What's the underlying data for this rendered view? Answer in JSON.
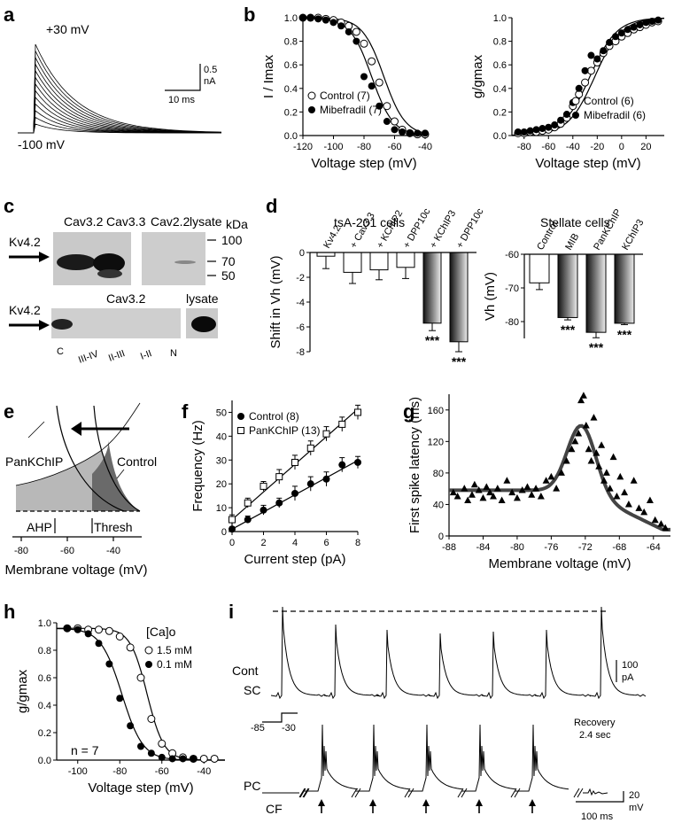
{
  "panels": {
    "a": {
      "label": "a",
      "top_voltage": "+30 mV",
      "bottom_voltage": "-100 mV",
      "scale_current": "0.5 nA",
      "scale_time": "10 ms",
      "scale_current_lines": [
        "0.5",
        "nA"
      ]
    },
    "b1": {
      "label": "b",
      "chart_data": {
        "type": "scatter",
        "xlabel": "Voltage step (mV)",
        "ylabel": "I / Imax",
        "xlim": [
          -120,
          -40
        ],
        "ylim": [
          0.0,
          1.0
        ],
        "xticks": [
          -120,
          -100,
          -80,
          -60,
          -40
        ],
        "yticks": [
          "0.0",
          "0.2",
          "0.4",
          "0.6",
          "0.8",
          "1.0"
        ],
        "series": [
          {
            "name": "Control (7)",
            "marker": "open-circle",
            "x": [
              -120,
              -115,
              -110,
              -105,
              -100,
              -95,
              -90,
              -85,
              -80,
              -75,
              -70,
              -65,
              -60,
              -55,
              -50,
              -45,
              -40
            ],
            "y": [
              1.0,
              1.0,
              1.0,
              0.99,
              0.98,
              0.96,
              0.93,
              0.88,
              0.78,
              0.63,
              0.45,
              0.25,
              0.12,
              0.05,
              0.02,
              0.01,
              0.01
            ]
          },
          {
            "name": "Mibefradil (7)",
            "marker": "filled-circle",
            "x": [
              -120,
              -115,
              -110,
              -105,
              -100,
              -95,
              -90,
              -85,
              -80,
              -75,
              -70,
              -65,
              -60,
              -55,
              -50,
              -45,
              -40
            ],
            "y": [
              1.0,
              1.0,
              0.99,
              0.98,
              0.96,
              0.93,
              0.88,
              0.8,
              0.5,
              0.42,
              0.25,
              0.12,
              0.05,
              0.03,
              0.02,
              0.02,
              0.02
            ]
          }
        ]
      }
    },
    "b2": {
      "chart_data": {
        "type": "scatter",
        "xlabel": "Voltage step (mV)",
        "ylabel": "g/gmax",
        "xlim": [
          -90,
          35
        ],
        "ylim": [
          0.0,
          1.0
        ],
        "xticks": [
          -80,
          -60,
          -40,
          -20,
          0,
          20
        ],
        "yticks": [
          "0.0",
          "0.2",
          "0.4",
          "0.6",
          "0.8",
          "1.0"
        ],
        "series": [
          {
            "name": "Control (6)",
            "marker": "open-circle",
            "x": [
              -85,
              -80,
              -75,
              -70,
              -65,
              -60,
              -55,
              -50,
              -45,
              -40,
              -35,
              -30,
              -25,
              -20,
              -15,
              -10,
              -5,
              0,
              5,
              10,
              15,
              20,
              25,
              30
            ],
            "y": [
              0.02,
              0.02,
              0.03,
              0.03,
              0.04,
              0.05,
              0.07,
              0.1,
              0.15,
              0.25,
              0.35,
              0.45,
              0.55,
              0.62,
              0.7,
              0.76,
              0.8,
              0.84,
              0.87,
              0.9,
              0.92,
              0.94,
              0.96,
              0.97
            ]
          },
          {
            "name": "Mibefradil (6)",
            "marker": "filled-circle",
            "x": [
              -85,
              -80,
              -75,
              -70,
              -65,
              -60,
              -55,
              -50,
              -45,
              -40,
              -35,
              -30,
              -25,
              -20,
              -15,
              -10,
              -5,
              0,
              5,
              10,
              15,
              20,
              25,
              30
            ],
            "y": [
              0.03,
              0.03,
              0.04,
              0.05,
              0.06,
              0.07,
              0.09,
              0.13,
              0.18,
              0.28,
              0.4,
              0.55,
              0.68,
              0.65,
              0.72,
              0.79,
              0.84,
              0.87,
              0.9,
              0.92,
              0.94,
              0.96,
              0.97,
              0.98
            ]
          }
        ]
      }
    },
    "c": {
      "label": "c",
      "top_lanes": [
        "Cav3.2",
        "Cav3.3",
        "Cav2.2",
        "lysate"
      ],
      "kda_title": "kDa",
      "kda_marks": [
        "100",
        "70",
        "50"
      ],
      "arrow_label": "Kv4.2",
      "bottom_title": "Cav3.2",
      "bottom_lysate": "lysate",
      "bottom_lanes": [
        "C",
        "III-IV",
        "II-III",
        "I-II",
        "N"
      ]
    },
    "d1": {
      "label": "d",
      "title": "tsA-201 cells",
      "chart_data": {
        "type": "bar",
        "categories": [
          "Kv4.2",
          "+ Cav3.3",
          "+ KChIP2",
          "+ DPP10c",
          "+ KChIP3",
          "+ DPP10c"
        ],
        "values": [
          -0.3,
          -1.6,
          -1.4,
          -1.2,
          -5.7,
          -7.2
        ],
        "errors": [
          1.0,
          0.9,
          0.8,
          0.9,
          0.6,
          0.8
        ],
        "significance": [
          "",
          "",
          "",
          "",
          "***",
          "***"
        ],
        "ylabel": "Shift in Vh (mV)",
        "ylim": [
          -8,
          0
        ],
        "yticks": [
          "0",
          "-2",
          "-4",
          "-6",
          "-8"
        ]
      }
    },
    "d2": {
      "title": "Stellate cells",
      "chart_data": {
        "type": "bar",
        "categories": [
          "Control",
          "MIB",
          "PanKChIP",
          "KChIP3"
        ],
        "values": [
          -68.5,
          -78.8,
          -83.2,
          -80.5
        ],
        "errors": [
          2.0,
          0.7,
          1.6,
          0.4
        ],
        "significance": [
          "",
          "***",
          "***",
          "***"
        ],
        "ylabel": "Vh (mV)",
        "ylim": [
          -85,
          -60
        ],
        "yticks": [
          "-60",
          "-70",
          "-80"
        ]
      }
    },
    "e": {
      "label": "e",
      "curve_label_left": "PanKChIP",
      "curve_label_right": "Control",
      "marker_ahp": "AHP",
      "marker_thresh": "Thresh",
      "xlabel": "Membrane voltage (mV)",
      "xticks": [
        "-80",
        "-60",
        "-40"
      ]
    },
    "f": {
      "label": "f",
      "chart_data": {
        "type": "scatter",
        "xlabel": "Current step (pA)",
        "ylabel": "Frequency (Hz)",
        "xlim": [
          0,
          8
        ],
        "ylim": [
          0,
          55
        ],
        "xticks": [
          "0",
          "2",
          "4",
          "6",
          "8"
        ],
        "yticks": [
          "0",
          "10",
          "20",
          "30",
          "40",
          "50"
        ],
        "series": [
          {
            "name": "Control (8)",
            "marker": "filled-circle",
            "x": [
              0,
              1,
              2,
              3,
              4,
              5,
              6,
              7,
              8
            ],
            "y": [
              1,
              5,
              9,
              12,
              16,
              20,
              22,
              28,
              29
            ],
            "err": [
              1,
              1.5,
              2,
              2,
              3,
              3,
              3,
              3,
              2.5
            ]
          },
          {
            "name": "PanKChIP (13)",
            "marker": "open-square",
            "x": [
              0,
              1,
              2,
              3,
              4,
              5,
              6,
              7,
              8
            ],
            "y": [
              5,
              12,
              19,
              23,
              29,
              35,
              41,
              45,
              50
            ],
            "err": [
              2,
              2,
              2,
              3,
              3,
              3,
              3,
              3,
              3
            ]
          }
        ]
      }
    },
    "g": {
      "label": "g",
      "chart_data": {
        "type": "scatter",
        "xlabel": "Membrane voltage (mV)",
        "ylabel": "First spike latency (ms)",
        "xlim": [
          -88,
          -62
        ],
        "ylim": [
          0,
          180
        ],
        "xticks": [
          "-88",
          "-84",
          "-80",
          "-76",
          "-72",
          "-68",
          "-64"
        ],
        "yticks": [
          "0",
          "40",
          "80",
          "120",
          "160"
        ],
        "series": [
          {
            "name": "latency",
            "marker": "filled-triangle",
            "x": [
              -87.5,
              -87,
              -86.2,
              -85.8,
              -85.3,
              -85,
              -84.5,
              -84,
              -83.6,
              -83.2,
              -82.8,
              -82.3,
              -81.8,
              -81.2,
              -80.6,
              -80,
              -79.4,
              -78.8,
              -78.3,
              -77.8,
              -77.2,
              -76.6,
              -76,
              -75.4,
              -74.8,
              -74.2,
              -73.6,
              -73.2,
              -72.8,
              -72.5,
              -72.2,
              -71.9,
              -71.6,
              -71.3,
              -71,
              -70.7,
              -70.4,
              -70.1,
              -69.8,
              -69.5,
              -69.1,
              -68.7,
              -68.3,
              -67.9,
              -67.4,
              -66.9,
              -66.3,
              -65.7,
              -65.1,
              -64.4,
              -63.8,
              -63.1,
              -62.6
            ],
            "y": [
              55,
              50,
              60,
              45,
              52,
              65,
              58,
              48,
              62,
              55,
              50,
              60,
              45,
              70,
              55,
              48,
              58,
              62,
              52,
              60,
              50,
              70,
              75,
              60,
              80,
              95,
              110,
              120,
              130,
              172,
              178,
              140,
              110,
              95,
              150,
              105,
              88,
              115,
              70,
              80,
              60,
              100,
              50,
              75,
              55,
              40,
              70,
              35,
              30,
              45,
              20,
              15,
              10
            ]
          }
        ]
      }
    },
    "h": {
      "label": "h",
      "legend_title": "[Ca]o",
      "n_label": "n = 7",
      "chart_data": {
        "type": "scatter",
        "xlabel": "Voltage step (mV)",
        "ylabel": "g/gmax",
        "xlim": [
          -110,
          -30
        ],
        "ylim": [
          0.0,
          1.0
        ],
        "xticks": [
          "-100",
          "-80",
          "-60",
          "-40"
        ],
        "yticks": [
          "0.0",
          "0.2",
          "0.4",
          "0.6",
          "0.8",
          "1.0"
        ],
        "series": [
          {
            "name": "1.5 mM",
            "marker": "open-circle",
            "x": [
              -105,
              -100,
              -95,
              -90,
              -85,
              -80,
              -75,
              -70,
              -65,
              -60,
              -55,
              -50,
              -45,
              -40,
              -35
            ],
            "y": [
              0.96,
              0.96,
              0.95,
              0.95,
              0.94,
              0.9,
              0.82,
              0.6,
              0.3,
              0.12,
              0.05,
              0.02,
              0.01,
              0.01,
              0.01
            ]
          },
          {
            "name": "0.1 mM",
            "marker": "filled-circle",
            "x": [
              -105,
              -100,
              -95,
              -90,
              -85,
              -80,
              -75,
              -70,
              -65,
              -60,
              -55,
              -50,
              -45
            ],
            "y": [
              0.96,
              0.95,
              0.92,
              0.85,
              0.7,
              0.45,
              0.25,
              0.1,
              0.05,
              0.02,
              0.01,
              0.01,
              0.01
            ]
          }
        ]
      }
    },
    "i": {
      "label": "i",
      "row_cont": "Cont",
      "row_sc": "SC",
      "row_pc": "PC",
      "cf_label": "CF",
      "step_from": "-85",
      "step_to": "-30",
      "recovery_line1": "Recovery",
      "recovery_line2": "2.4 sec",
      "scale_sc_value": "100",
      "scale_sc_unit": "pA",
      "scale_pc_value": "20",
      "scale_pc_unit": "mV",
      "scale_time": "100 ms"
    }
  }
}
